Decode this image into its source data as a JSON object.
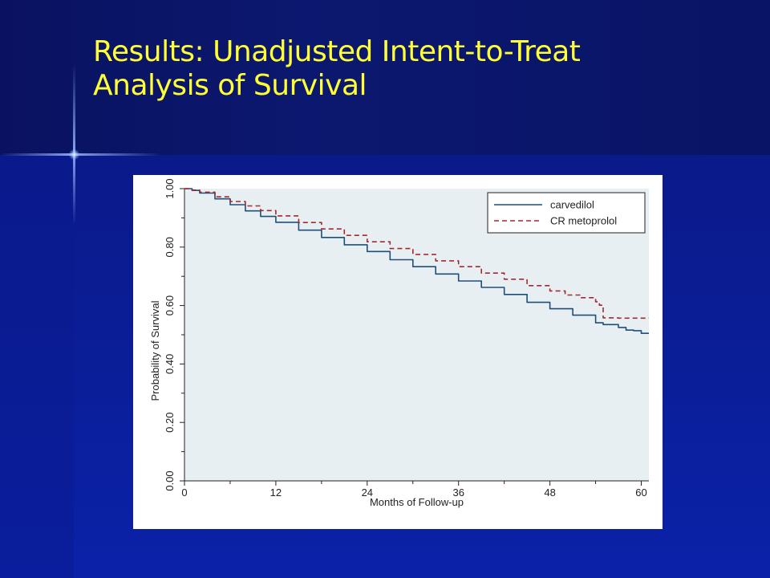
{
  "slide": {
    "title_line1": "Results: Unadjusted Intent-to-Treat",
    "title_line2": "Analysis of Survival",
    "title_color": "#ffff33"
  },
  "chart_data": {
    "type": "line",
    "xlabel": "Months of Follow-up",
    "ylabel": "Probability of Survival",
    "xlim": [
      0,
      61
    ],
    "ylim": [
      0,
      1
    ],
    "x_ticks": [
      0,
      12,
      24,
      36,
      48,
      60
    ],
    "y_ticks": [
      "0.00",
      "0.20",
      "0.40",
      "0.60",
      "0.80",
      "1.00"
    ],
    "legend_position": "top-right",
    "grid": false,
    "series": [
      {
        "name": "carvedilol",
        "color": "#1f4e79",
        "dash": "solid",
        "x": [
          0,
          1,
          2,
          4,
          6,
          8,
          10,
          12,
          15,
          18,
          21,
          24,
          27,
          30,
          33,
          36,
          39,
          42,
          45,
          48,
          51,
          54,
          55,
          57,
          58,
          59,
          60,
          61
        ],
        "y": [
          1.0,
          0.994,
          0.985,
          0.965,
          0.945,
          0.924,
          0.905,
          0.885,
          0.858,
          0.833,
          0.808,
          0.785,
          0.757,
          0.733,
          0.708,
          0.684,
          0.662,
          0.638,
          0.611,
          0.589,
          0.567,
          0.541,
          0.535,
          0.525,
          0.516,
          0.514,
          0.505,
          0.505
        ]
      },
      {
        "name": "CR metoprolol",
        "color": "#a5282d",
        "dash": "dashed",
        "x": [
          0,
          1,
          2,
          4,
          6,
          8,
          10,
          12,
          15,
          18,
          21,
          24,
          27,
          30,
          33,
          36,
          39,
          42,
          45,
          48,
          50,
          52,
          54,
          54.5,
          55,
          57,
          59,
          61
        ],
        "y": [
          1.0,
          0.995,
          0.988,
          0.972,
          0.956,
          0.941,
          0.925,
          0.907,
          0.884,
          0.862,
          0.84,
          0.818,
          0.795,
          0.775,
          0.753,
          0.733,
          0.711,
          0.69,
          0.668,
          0.65,
          0.636,
          0.627,
          0.613,
          0.601,
          0.558,
          0.557,
          0.557,
          0.557
        ]
      }
    ]
  }
}
